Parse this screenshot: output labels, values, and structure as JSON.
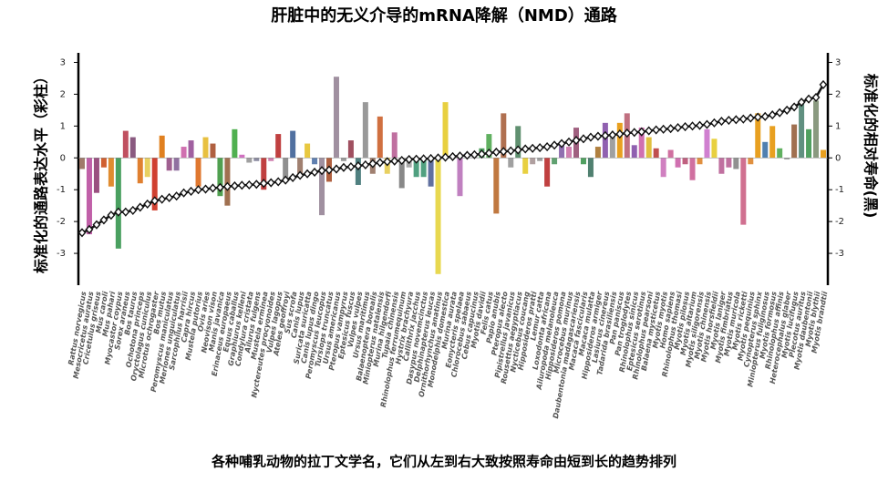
{
  "chart_data": {
    "type": "bar-line",
    "title": "肝脏中的无义介导的mRNA降解（NMD）通路",
    "ylabel": "标准化的通路表达水平（彩柱）",
    "y2label": "标准化的相对寿命(黑)",
    "xlabel": "各种哺乳动物的拉丁文学名，它们从左到右大致按照寿命由短到长的趋势排列",
    "categories": [
      "Rattus norvegicus",
      "Mesocricetus auratus",
      "Cricetulus griseus",
      "Mus caroli",
      "Mus pahari",
      "Myocastor coypus",
      "Sorex araneus",
      "Bos taurus",
      "Ochotona princeps",
      "Oryctolagus cuniculus",
      "Microtus ochrogaster",
      "Bos mutus",
      "Peromyscus maniculatus",
      "Meriones unguiculatus",
      "Sarcophilus harrisii",
      "Capra hircus",
      "Mustela putorius",
      "Ovis aries",
      "Neovison vison",
      "Manis javanica",
      "Erinaceus europaeus",
      "Equus caballus",
      "Graphiurus kelleni",
      "Condylura cristata",
      "Ailurus fulgens",
      "Mustela erminea",
      "Nyctereutes procyonoides",
      "Vulpes lagopus",
      "Ateles geoffroyi",
      "Sus scrofa",
      "Canis lupus",
      "Suricata suricatta",
      "Canis lupus dingo",
      "Peromyscus leucopus",
      "Tursiops truncatus",
      "Ursus americanus",
      "Pteropus vampyrus",
      "Eptesicus fuscus",
      "Vulpes vulpes",
      "Ursus maritimus",
      "Balaenoptera borealis",
      "Miniopterus natalensis",
      "Murina hilgendorfi",
      "Tupaia chinensis",
      "Rhinolophus ferrumequinum",
      "Hystrix brachyura",
      "Callithrix jacchus",
      "Dasypus novemcinctus",
      "Delphinapterus leucas",
      "Ornithorhynchus anatinus",
      "Monodelphis domestica",
      "Murina aurata",
      "Eonycteris spelaea",
      "Chlorocebus sabaeus",
      "Cebus capucinus",
      "Myotis davidii",
      "Felis catus",
      "Papio anubis",
      "Pteropus alecto",
      "Pipistrellus javanicus",
      "Rousettus aegyptiacus",
      "Nycticebus coucang",
      "Hipposideros pratti",
      "Lemur catta",
      "Loxodonta africana",
      "Ailuropoda melanoleuca",
      "Hipposideros pomona",
      "Microcebus murinus",
      "Daubentonia madagascariensis",
      "Macaca fascicularis",
      "Macaca mulatta",
      "Hipposideros armiger",
      "Lasiurus cinereus",
      "Tadarida brasiliensis",
      "Pan paniscus",
      "Pan troglodytes",
      "Rhinolophus sinicus",
      "Eptesicus serotinus",
      "Rhinolophus pearsoni",
      "Balaena mysticetus",
      "Myotis myotis",
      "Homo sapiens",
      "Rhinolophus thomasi",
      "Myotis pilosus",
      "Myotis altarium",
      "Myotis siligorensis",
      "Myotis chinensis",
      "Myotis horsfieldii",
      "Myotis laniger",
      "Myotis fimbriatus",
      "Myotis muricola",
      "Myotis ricketti",
      "Myotis pequinius",
      "Cynopterus sphinx",
      "Miniopterus fuliginosus",
      "Myotis formosus",
      "Rhinolophus affinis",
      "Heterocephalus glaber",
      "Myotis lucifugus",
      "Plecotus auritus",
      "Myotis daubentonii",
      "Myotis blythii",
      "Myotis brandtii"
    ],
    "series": [
      {
        "name": "标准化的通路表达水平",
        "axis": "y",
        "values": [
          -0.35,
          -2.4,
          -1.1,
          -0.3,
          -0.9,
          -2.85,
          0.85,
          0.65,
          -0.8,
          -0.6,
          -1.65,
          0.7,
          -0.4,
          -0.4,
          0.35,
          0.55,
          -0.9,
          0.65,
          0.45,
          -1.2,
          -1.5,
          0.9,
          0.1,
          -0.15,
          -0.1,
          -1.0,
          -0.1,
          0.75,
          -0.75,
          0.85,
          -0.5,
          0.45,
          -0.2,
          -1.8,
          -0.75,
          2.55,
          -0.1,
          0.55,
          -0.85,
          1.75,
          -0.5,
          1.3,
          -0.5,
          0.8,
          -0.95,
          -0.3,
          -0.6,
          -0.6,
          -0.9,
          -3.65,
          1.75,
          0.05,
          -1.2,
          0.15,
          0.1,
          0.3,
          0.75,
          -1.75,
          1.4,
          -0.3,
          1.0,
          -0.5,
          -0.2,
          -0.1,
          -0.9,
          -0.2,
          0.5,
          0.35,
          0.95,
          -0.2,
          -0.6,
          0.35,
          1.1,
          0.75,
          1.1,
          1.4,
          0.4,
          0.95,
          0.65,
          0.3,
          -0.6,
          0.25,
          -0.3,
          -0.2,
          -0.7,
          -0.2,
          0.9,
          0.6,
          -0.5,
          -0.3,
          -0.35,
          -2.1,
          -0.2,
          1.4,
          0.5,
          1.0,
          0.3,
          -0.05,
          1.05,
          1.8,
          0.9,
          1.8,
          0.25
        ],
        "colors": [
          "#a07a6a",
          "#c060a8",
          "#9a5080",
          "#d06030",
          "#e08c30",
          "#4aa060",
          "#c05060",
          "#8a5a80",
          "#e08030",
          "#e8d060",
          "#d04030",
          "#e08020",
          "#a06090",
          "#9070a0",
          "#d070b0",
          "#a060a0",
          "#e07830",
          "#e8c040",
          "#b06040",
          "#50a050",
          "#a07050",
          "#50b050",
          "#d070c0",
          "#a0a0a0",
          "#8a8aa0",
          "#c04040",
          "#d080b0",
          "#c04040",
          "#909090",
          "#5070a0",
          "#a08070",
          "#e8c840",
          "#6080b0",
          "#a090a0",
          "#b06040",
          "#a090a0",
          "#999999",
          "#a05060",
          "#508080",
          "#999999",
          "#a08070",
          "#d07040",
          "#e8d060",
          "#c070a0",
          "#888888",
          "#aaaaaa",
          "#50a080",
          "#50a080",
          "#6070a0",
          "#e8d850",
          "#e8d040",
          "#b0b0b0",
          "#c080c0",
          "#6080b0",
          "#a0a0a0",
          "#50a060",
          "#60b060",
          "#c07840",
          "#b07050",
          "#a0a0a0",
          "#609070",
          "#e8d040",
          "#b0a0a0",
          "#a0a0a0",
          "#c04040",
          "#60a070",
          "#9070b0",
          "#d080b0",
          "#a06080",
          "#50a060",
          "#508070",
          "#b08040",
          "#9060b0",
          "#a0a0a0",
          "#e8a020",
          "#c07080",
          "#9060b0",
          "#d070b0",
          "#e0c040",
          "#c05050",
          "#d080c0",
          "#d070a0",
          "#d070b0",
          "#c06080",
          "#d070a0",
          "#e09040",
          "#d080d0",
          "#e8d040",
          "#c070a0",
          "#c070a0",
          "#909090",
          "#d07090",
          "#e09040",
          "#e8a020",
          "#5080b0",
          "#e8a020",
          "#60b060",
          "#a0a0a0",
          "#a07050",
          "#609080",
          "#50a060",
          "#8a9a80",
          "#e8a020"
        ]
      },
      {
        "name": "标准化的相对寿命",
        "axis": "y2",
        "color": "#111111",
        "values": [
          -2.35,
          -2.25,
          -2.1,
          -1.95,
          -1.8,
          -1.7,
          -1.7,
          -1.65,
          -1.55,
          -1.45,
          -1.35,
          -1.3,
          -1.25,
          -1.2,
          -1.1,
          -1.05,
          -1.0,
          -0.98,
          -0.95,
          -0.93,
          -0.9,
          -0.88,
          -0.86,
          -0.85,
          -0.83,
          -0.8,
          -0.78,
          -0.75,
          -0.7,
          -0.62,
          -0.55,
          -0.5,
          -0.45,
          -0.4,
          -0.38,
          -0.35,
          -0.3,
          -0.28,
          -0.25,
          -0.22,
          -0.18,
          -0.15,
          -0.12,
          -0.1,
          -0.08,
          -0.05,
          -0.04,
          -0.03,
          -0.02,
          0,
          0.02,
          0.04,
          0.06,
          0.08,
          0.1,
          0.12,
          0.15,
          0.18,
          0.2,
          0.22,
          0.25,
          0.28,
          0.3,
          0.32,
          0.35,
          0.4,
          0.45,
          0.5,
          0.55,
          0.6,
          0.65,
          0.68,
          0.7,
          0.72,
          0.75,
          0.78,
          0.8,
          0.82,
          0.85,
          0.88,
          0.9,
          0.92,
          0.95,
          0.98,
          1.0,
          1.02,
          1.05,
          1.1,
          1.15,
          1.18,
          1.2,
          1.22,
          1.25,
          1.28,
          1.3,
          1.35,
          1.42,
          1.5,
          1.6,
          1.75,
          1.85,
          1.9,
          2.3
        ]
      }
    ],
    "ylim": [
      -4,
      3.3
    ],
    "yticks": [
      -3,
      -2,
      -1,
      0,
      1,
      2,
      3
    ],
    "y2lim": [
      -4,
      3.3
    ],
    "y2ticks": [
      -3,
      -2,
      -1,
      0,
      1,
      2,
      3
    ]
  }
}
